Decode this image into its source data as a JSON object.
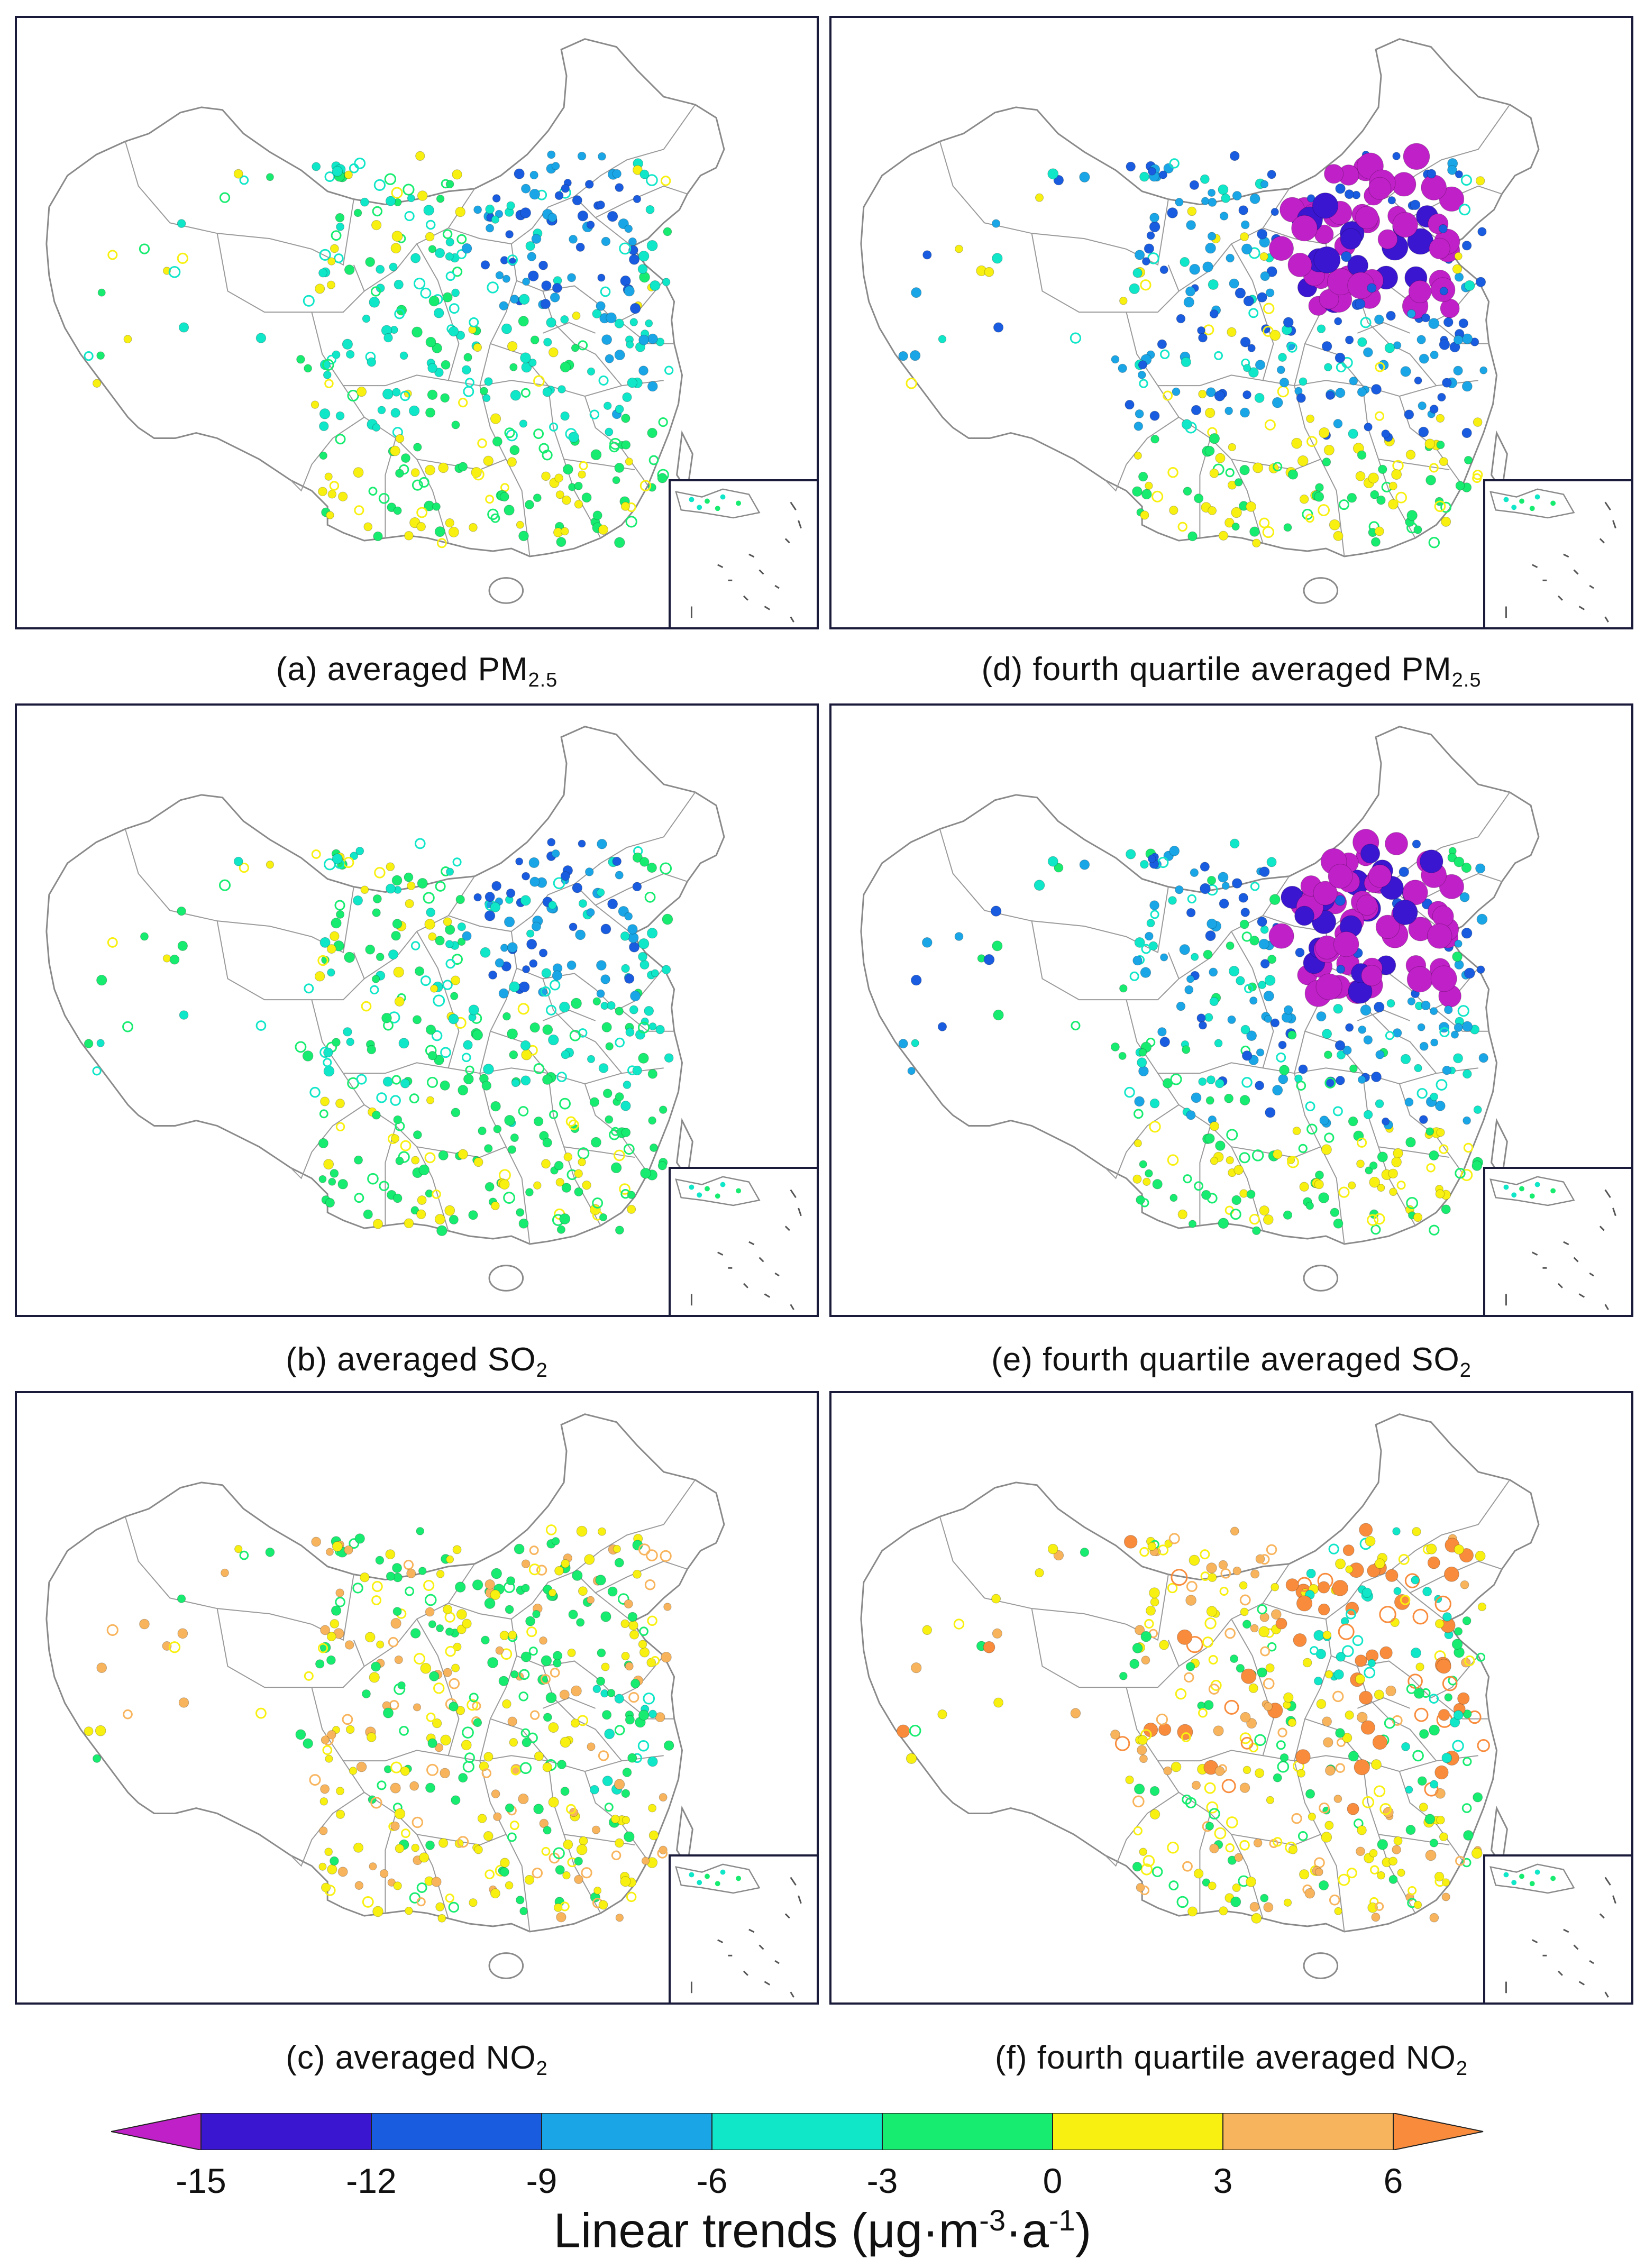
{
  "panels": [
    {
      "id": "a",
      "caption_prefix": "(a) averaged  PM",
      "caption_sub": "2.5",
      "caption_suffix": "",
      "scale": 1.0
    },
    {
      "id": "d",
      "caption_prefix": "(d) fourth quartile averaged  PM",
      "caption_sub": "2.5",
      "caption_suffix": "",
      "scale": 1.6
    },
    {
      "id": "b",
      "caption_prefix": "(b) averaged  SO",
      "caption_sub": "2",
      "caption_suffix": "",
      "scale": 1.0
    },
    {
      "id": "e",
      "caption_prefix": "(e)  fourth quartile averaged SO",
      "caption_sub": "2",
      "caption_suffix": "",
      "scale": 1.6
    },
    {
      "id": "c",
      "caption_prefix": "(c) averaged  NO",
      "caption_sub": "2",
      "caption_suffix": "",
      "scale": 1.0
    },
    {
      "id": "f",
      "caption_prefix": "(f) fourth quartile averaged NO",
      "caption_sub": "2",
      "caption_suffix": "",
      "scale": 1.3
    }
  ],
  "legend": {
    "title_main": "Linear trends (μg·m",
    "title_exp1": "-3",
    "title_mid": "·a",
    "title_exp2": "-1",
    "title_end": ")",
    "ticks": [
      "-15",
      "-12",
      "-9",
      "-6",
      "-3",
      "0",
      "3",
      "6"
    ],
    "bins": [
      {
        "range": "< -15",
        "color": "#c020c8"
      },
      {
        "range": "-15 to -12",
        "color": "#3a16d0"
      },
      {
        "range": "-12 to -9",
        "color": "#1a5ce0"
      },
      {
        "range": "-9 to -6",
        "color": "#1aa6e6"
      },
      {
        "range": "-6 to -3",
        "color": "#10e6c8"
      },
      {
        "range": "-3 to 0",
        "color": "#18ec70"
      },
      {
        "range": "0 to 3",
        "color": "#f8f010"
      },
      {
        "range": "3 to 6",
        "color": "#f8b45c"
      },
      {
        "range": "> 6",
        "color": "#f88c3c"
      }
    ]
  }
}
